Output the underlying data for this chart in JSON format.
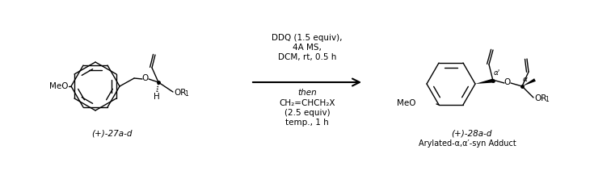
{
  "bg_color": "#ffffff",
  "line_color": "#000000",
  "text_color": "#000000",
  "rc1": "DDQ (1.5 equiv),",
  "rc2": "4A MS,",
  "rc3": "DCM, rt, 0.5 h",
  "rc4": "then",
  "rc5": "CH₂=CHCH₂X",
  "rc6": "(2.5 equiv)",
  "rc7": "temp., 1 h",
  "label_left": "(+)-27a-d",
  "label_right_top": "(+)-28a-d",
  "label_right_bot": "Arylated-α,α′-syn Adduct",
  "figsize": [
    7.56,
    2.22
  ],
  "dpi": 100
}
